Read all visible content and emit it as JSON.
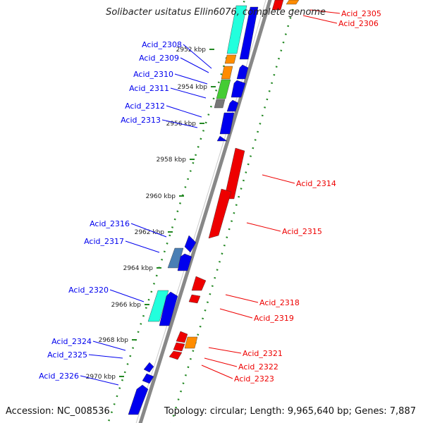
{
  "title": "Solibacter usitatus Ellin6076, complete genome",
  "accession": "Accession: NC_008536",
  "summary": "Topology: circular; Length: 9,965,640 bp; Genes: 7,887",
  "colors": {
    "forward": "#0000ee",
    "reverse": "#ee0000",
    "backbone": "#888888",
    "ticks": "#228822",
    "orange": "#ff8c00",
    "lime": "#44cc33",
    "aqua": "#22ffdd",
    "steel": "#4a7fb5",
    "gray": "#777777"
  },
  "kbp_labels": [
    "2952 kbp",
    "2954 kbp",
    "2956 kbp",
    "2958 kbp",
    "2960 kbp",
    "2962 kbp",
    "2964 kbp",
    "2966 kbp",
    "2968 kbp",
    "2970 kbp"
  ],
  "forward_genes": [
    "Acid_2308",
    "Acid_2309",
    "Acid_2310",
    "Acid_2311",
    "Acid_2312",
    "Acid_2313",
    "Acid_2316",
    "Acid_2317",
    "Acid_2320",
    "Acid_2324",
    "Acid_2325",
    "Acid_2326"
  ],
  "reverse_genes": [
    "Acid_2305",
    "Acid_2306",
    "Acid_2314",
    "Acid_2315",
    "Acid_2318",
    "Acid_2319",
    "Acid_2321",
    "Acid_2322",
    "Acid_2323"
  ]
}
